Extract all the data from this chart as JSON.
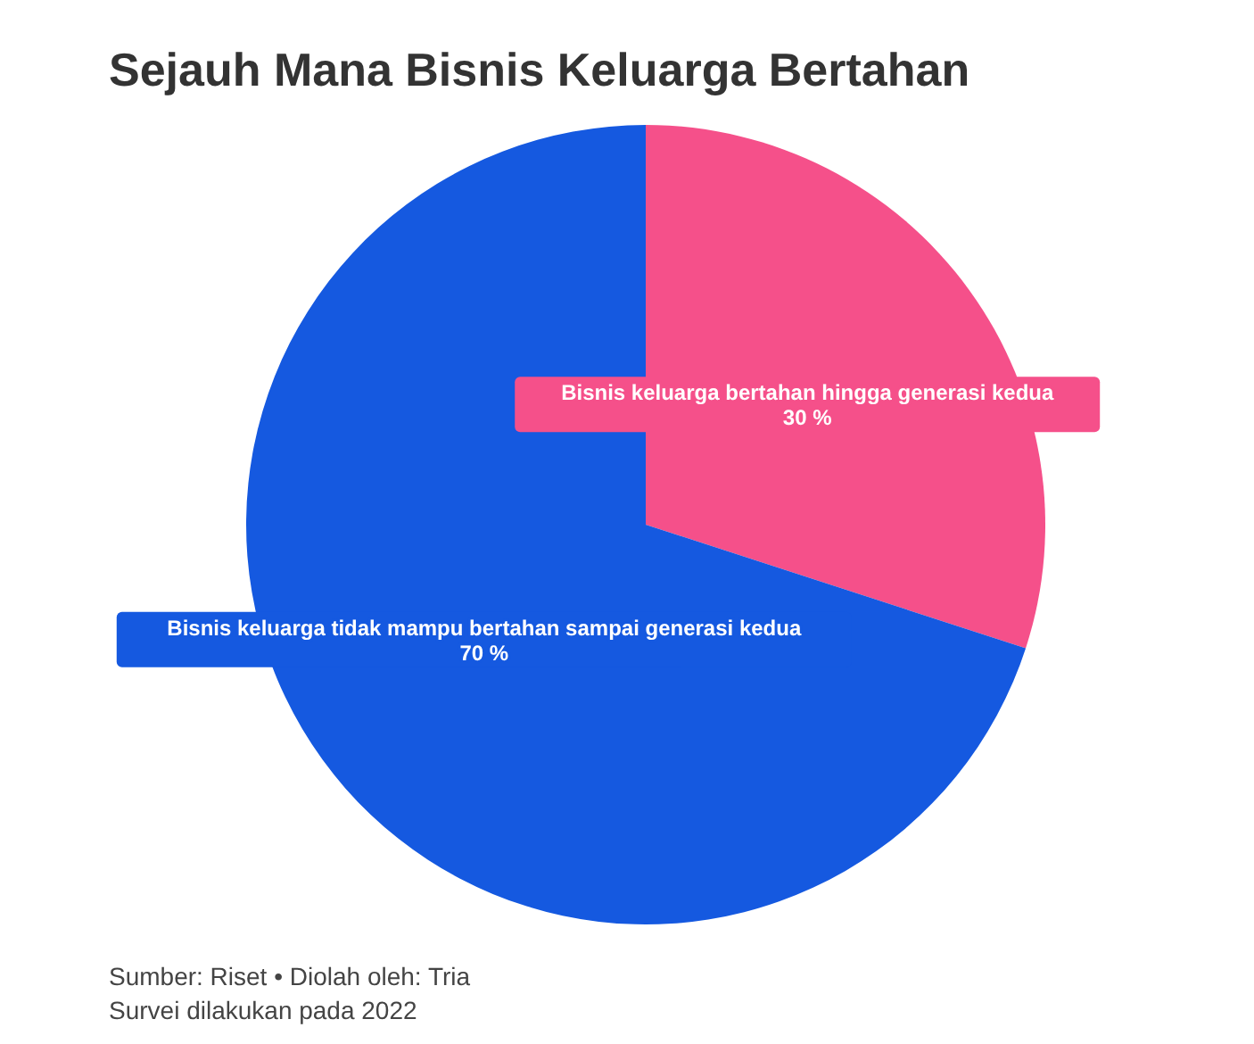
{
  "chart_data": {
    "type": "pie",
    "title": "Sejauh Mana Bisnis Keluarga Bertahan",
    "categories": [
      "Bisnis keluarga bertahan hingga generasi kedua",
      "Bisnis keluarga tidak mampu bertahan sampai generasi kedua"
    ],
    "values": [
      30,
      70
    ],
    "colors": [
      "#f5508a",
      "#1559e0"
    ],
    "value_labels": [
      "30 %",
      "70 %"
    ],
    "legend": false,
    "annotations": [
      "Sumber: Riset • Diolah oleh: Tria",
      "Survei dilakukan pada 2022"
    ]
  }
}
